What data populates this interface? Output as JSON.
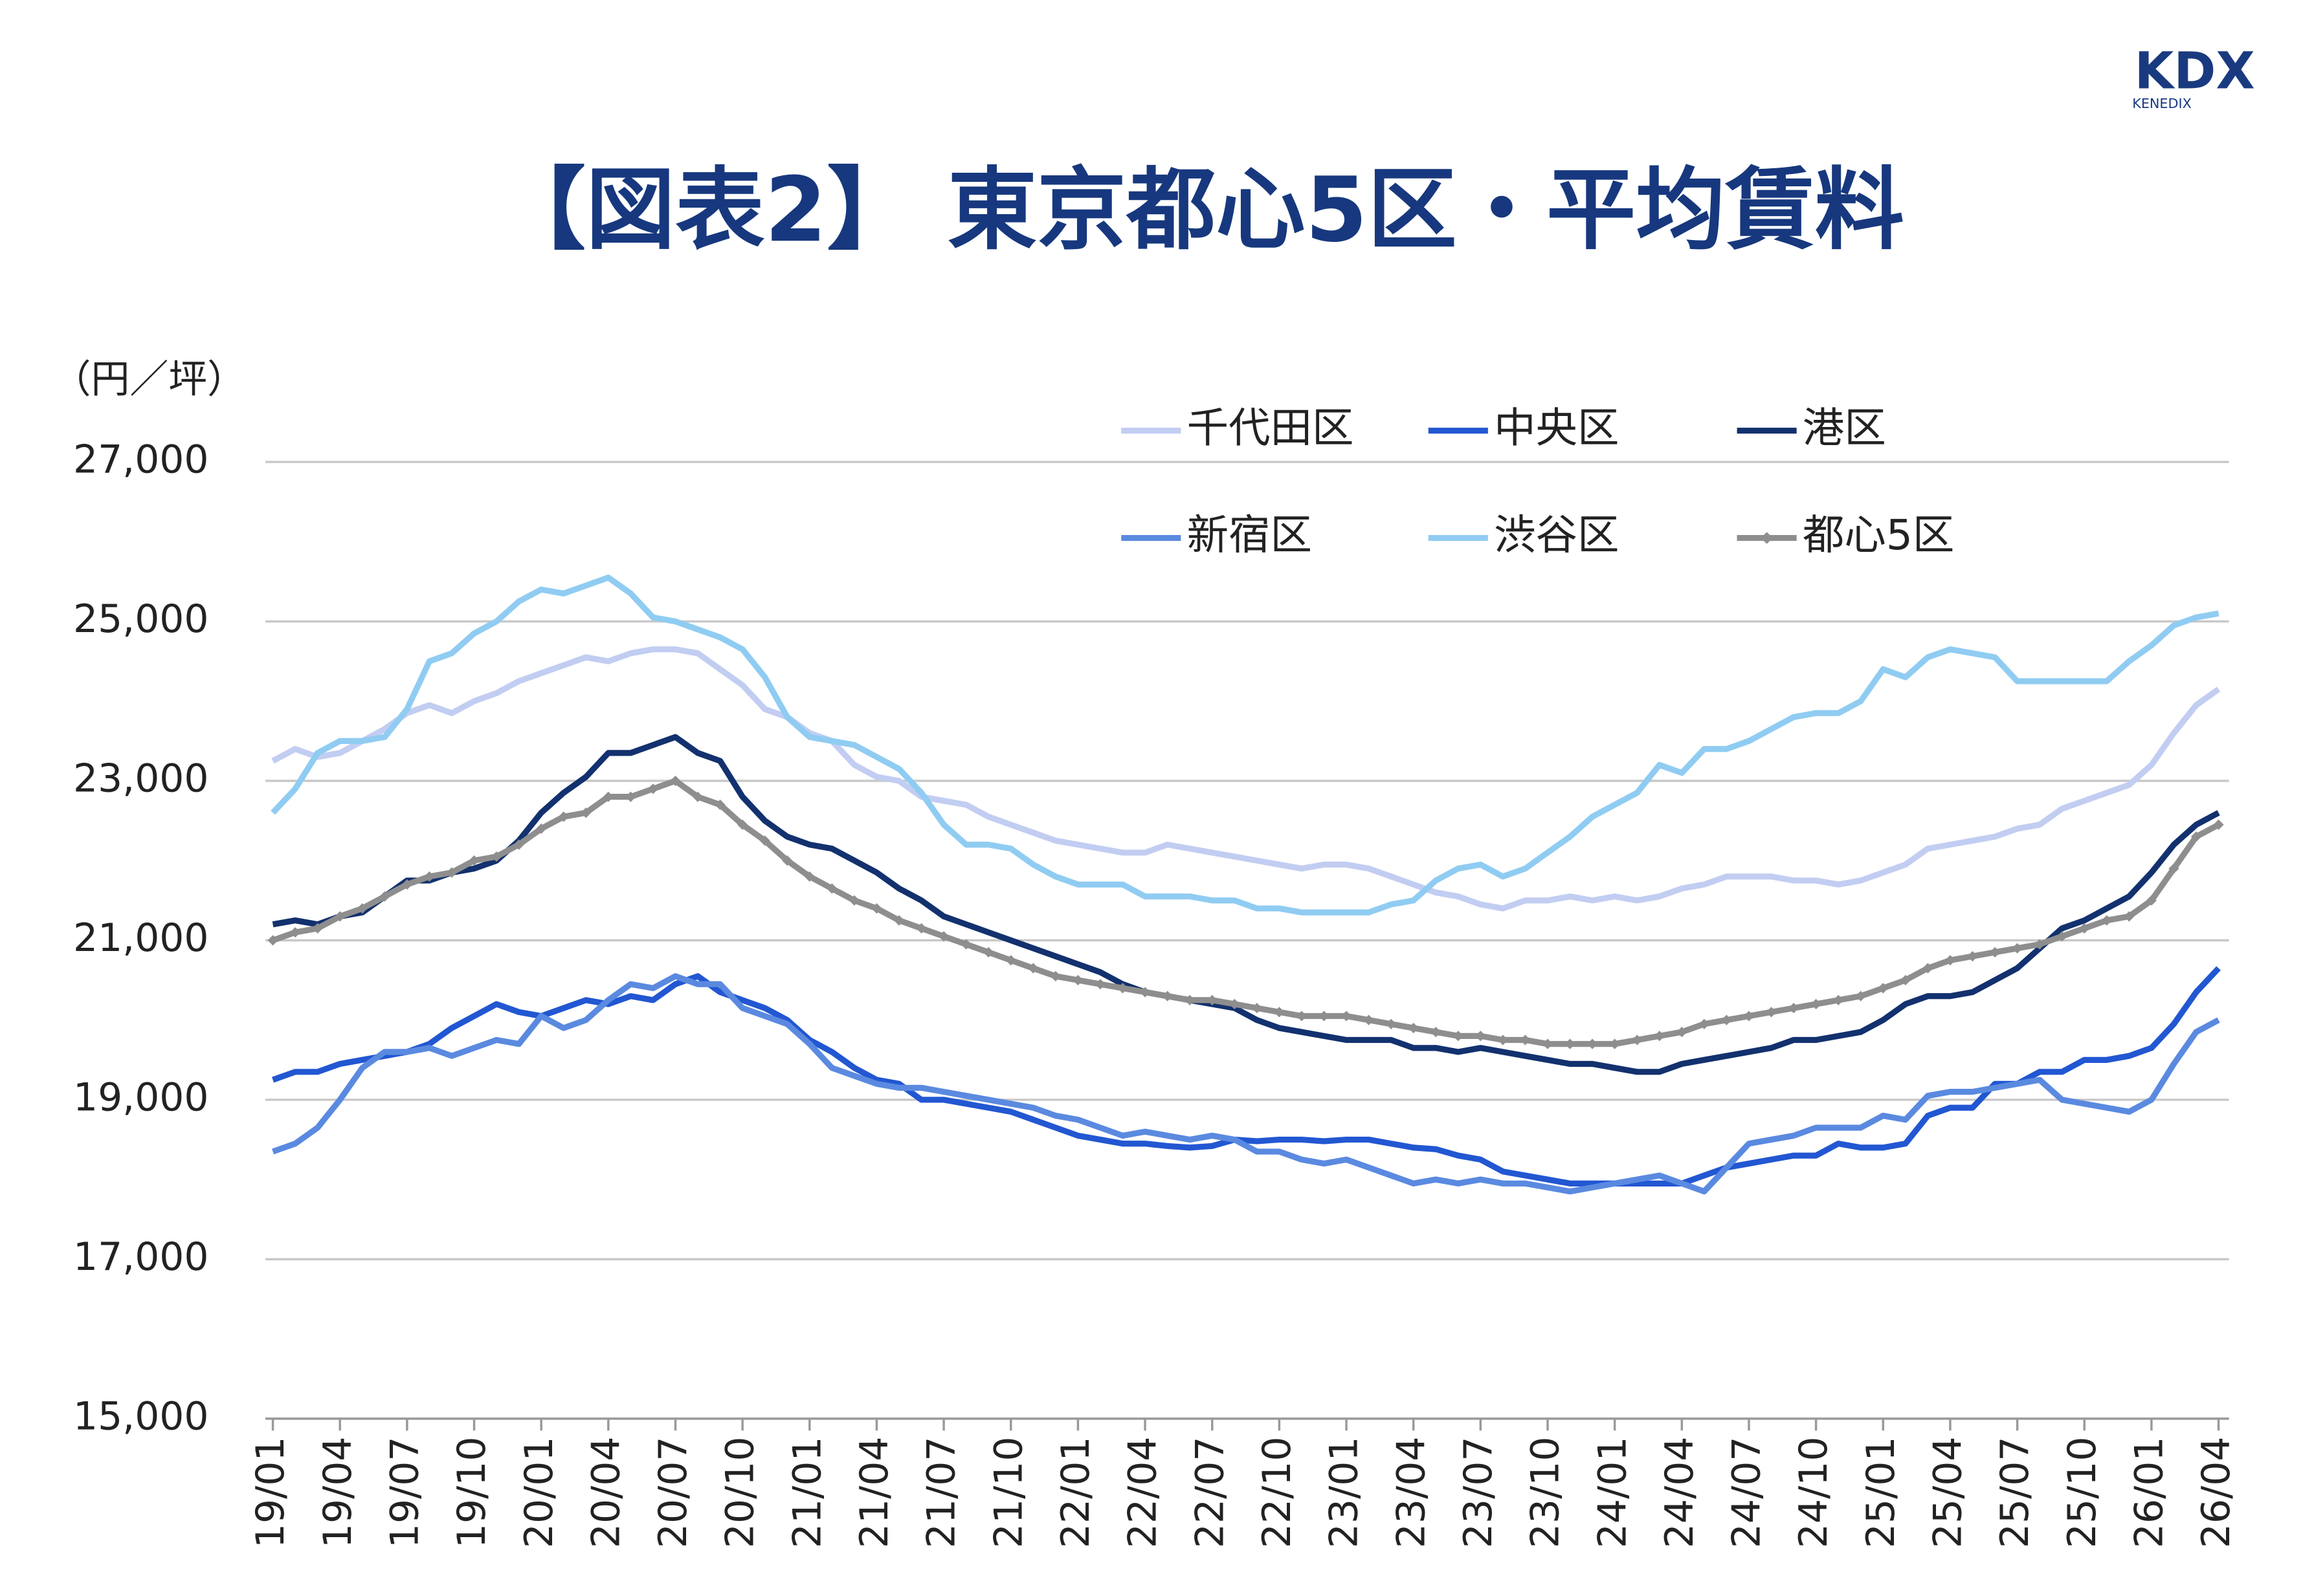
{
  "logo": {
    "brand": "KDX",
    "sub": "KENEDIX"
  },
  "chart_data": {
    "type": "line",
    "title": "【図表2】 東京都心5区・平均賃料",
    "y_axis_label": "（円／坪）",
    "categories": [
      "19/01",
      null,
      null,
      "19/04",
      null,
      null,
      "19/07",
      null,
      null,
      "19/10",
      null,
      null,
      "20/01",
      null,
      null,
      "20/04",
      null,
      null,
      "20/07",
      null,
      null,
      "20/10",
      null,
      null,
      "21/01",
      null,
      null,
      "21/04",
      null,
      null,
      "21/07",
      null,
      null,
      "21/10",
      null,
      null,
      "22/01",
      null,
      null,
      "22/04",
      null,
      null,
      "22/07",
      null,
      null,
      "22/10",
      null,
      null,
      "23/01",
      null,
      null,
      "23/04",
      null,
      null,
      "23/07",
      null,
      null,
      "23/10",
      null,
      null,
      "24/01",
      null,
      null,
      "24/04",
      null,
      null,
      "24/07",
      null,
      null,
      "24/10",
      null,
      null,
      "25/01",
      null,
      null,
      "25/04",
      null,
      null,
      "25/07",
      null,
      null,
      "25/10",
      null,
      null,
      "26/01",
      null,
      null,
      "26/04"
    ],
    "ylim": [
      15000,
      27000
    ],
    "yticks": [
      {
        "value": 15000,
        "label": "15,000"
      },
      {
        "value": 17000,
        "label": "17,000"
      },
      {
        "value": 19000,
        "label": "19,000"
      },
      {
        "value": 21000,
        "label": "21,000"
      },
      {
        "value": 23000,
        "label": "23,000"
      },
      {
        "value": 25000,
        "label": "25,000"
      },
      {
        "value": 27000,
        "label": "27,000"
      }
    ],
    "grid": true,
    "series": [
      {
        "name": "千代田区",
        "color": "#c2cdf2",
        "values": [
          23250,
          23400,
          23300,
          23350,
          23500,
          23650,
          23850,
          23950,
          23850,
          24000,
          24100,
          24250,
          24350,
          24450,
          24550,
          24500,
          24600,
          24650,
          24650,
          24600,
          24400,
          24200,
          23900,
          23800,
          23600,
          23500,
          23200,
          23050,
          23000,
          22800,
          22750,
          22700,
          22550,
          22450,
          22350,
          22250,
          22200,
          22150,
          22100,
          22100,
          22200,
          22150,
          22100,
          22050,
          22000,
          21950,
          21900,
          21950,
          21950,
          21900,
          21800,
          21700,
          21600,
          21550,
          21450,
          21400,
          21500,
          21500,
          21550,
          21500,
          21550,
          21500,
          21550,
          21650,
          21700,
          21800,
          21800,
          21800,
          21750,
          21750,
          21700,
          21750,
          21850,
          21950,
          22150,
          22200,
          22250,
          22300,
          22400,
          22450,
          22650,
          22750,
          22850,
          22950,
          23200,
          23600,
          23950,
          24150
        ]
      },
      {
        "name": "中央区",
        "color": "#2257d2",
        "values": [
          19250,
          19350,
          19350,
          19450,
          19500,
          19550,
          19600,
          19700,
          19900,
          20050,
          20200,
          20100,
          20050,
          20150,
          20250,
          20200,
          20300,
          20250,
          20450,
          20550,
          20350,
          20250,
          20150,
          20000,
          19750,
          19600,
          19400,
          19250,
          19200,
          19000,
          19000,
          18950,
          18900,
          18850,
          18750,
          18650,
          18550,
          18500,
          18450,
          18450,
          18420,
          18400,
          18420,
          18500,
          18480,
          18500,
          18500,
          18480,
          18500,
          18500,
          18450,
          18400,
          18380,
          18300,
          18250,
          18100,
          18050,
          18000,
          17950,
          17950,
          17950,
          17950,
          17950,
          17950,
          18050,
          18150,
          18200,
          18250,
          18300,
          18300,
          18450,
          18400,
          18400,
          18450,
          18800,
          18900,
          18900,
          19200,
          19200,
          19350,
          19350,
          19500,
          19500,
          19550,
          19650,
          19950,
          20350,
          20650
        ]
      },
      {
        "name": "港区",
        "color": "#12316e",
        "values": [
          21200,
          21250,
          21200,
          21300,
          21350,
          21550,
          21750,
          21750,
          21850,
          21900,
          22000,
          22250,
          22600,
          22850,
          23050,
          23350,
          23350,
          23450,
          23550,
          23350,
          23250,
          22800,
          22500,
          22300,
          22200,
          22150,
          22000,
          21850,
          21650,
          21500,
          21300,
          21200,
          21100,
          21000,
          20900,
          20800,
          20700,
          20600,
          20450,
          20350,
          20300,
          20250,
          20200,
          20150,
          20000,
          19900,
          19850,
          19800,
          19750,
          19750,
          19750,
          19650,
          19650,
          19600,
          19650,
          19600,
          19550,
          19500,
          19450,
          19450,
          19400,
          19350,
          19350,
          19450,
          19500,
          19550,
          19600,
          19650,
          19750,
          19750,
          19800,
          19850,
          20000,
          20200,
          20300,
          20300,
          20350,
          20500,
          20650,
          20900,
          21150,
          21250,
          21400,
          21550,
          21850,
          22200,
          22450,
          22600
        ]
      },
      {
        "name": "新宿区",
        "color": "#5a8ae0",
        "values": [
          18350,
          18450,
          18650,
          19000,
          19400,
          19600,
          19600,
          19650,
          19550,
          19650,
          19750,
          19700,
          20050,
          19900,
          20000,
          20250,
          20450,
          20400,
          20550,
          20450,
          20450,
          20150,
          20050,
          19950,
          19700,
          19400,
          19300,
          19200,
          19150,
          19150,
          19100,
          19050,
          19000,
          18950,
          18900,
          18800,
          18750,
          18650,
          18550,
          18600,
          18550,
          18500,
          18550,
          18500,
          18350,
          18350,
          18250,
          18200,
          18250,
          18150,
          18050,
          17950,
          18000,
          17950,
          18000,
          17950,
          17950,
          17900,
          17850,
          17900,
          17950,
          18000,
          18050,
          17950,
          17850,
          18150,
          18450,
          18500,
          18550,
          18650,
          18650,
          18650,
          18800,
          18750,
          19050,
          19100,
          19100,
          19150,
          19200,
          19250,
          19000,
          18950,
          18900,
          18850,
          19000,
          19450,
          19850,
          20000
        ]
      },
      {
        "name": "渋谷区",
        "color": "#90ccf2",
        "values": [
          22600,
          22900,
          23350,
          23500,
          23500,
          23550,
          23900,
          24500,
          24600,
          24850,
          25000,
          25250,
          25400,
          25350,
          25450,
          25550,
          25350,
          25050,
          25000,
          24900,
          24800,
          24650,
          24300,
          23800,
          23550,
          23500,
          23450,
          23300,
          23150,
          22850,
          22450,
          22200,
          22200,
          22150,
          21950,
          21800,
          21700,
          21700,
          21700,
          21550,
          21550,
          21550,
          21500,
          21500,
          21400,
          21400,
          21350,
          21350,
          21350,
          21350,
          21450,
          21500,
          21750,
          21900,
          21950,
          21800,
          21900,
          22100,
          22300,
          22550,
          22700,
          22850,
          23200,
          23100,
          23400,
          23400,
          23500,
          23650,
          23800,
          23850,
          23850,
          24000,
          24400,
          24300,
          24550,
          24650,
          24600,
          24550,
          24250,
          24250,
          24250,
          24250,
          24250,
          24500,
          24700,
          24950,
          25050,
          25100
        ]
      },
      {
        "name": "都心5区",
        "color": "#8e8e8e",
        "marker": "diamond",
        "values": [
          21000,
          21100,
          21150,
          21300,
          21400,
          21550,
          21700,
          21800,
          21850,
          22000,
          22050,
          22200,
          22400,
          22550,
          22600,
          22800,
          22800,
          22900,
          23000,
          22800,
          22700,
          22450,
          22250,
          22000,
          21800,
          21650,
          21500,
          21400,
          21250,
          21150,
          21050,
          20950,
          20850,
          20750,
          20650,
          20550,
          20500,
          20450,
          20400,
          20350,
          20300,
          20250,
          20250,
          20200,
          20150,
          20100,
          20050,
          20050,
          20050,
          20000,
          19950,
          19900,
          19850,
          19800,
          19800,
          19750,
          19750,
          19700,
          19700,
          19700,
          19700,
          19750,
          19800,
          19850,
          19950,
          20000,
          20050,
          20100,
          20150,
          20200,
          20250,
          20300,
          20400,
          20500,
          20650,
          20750,
          20800,
          20850,
          20900,
          20950,
          21050,
          21150,
          21250,
          21300,
          21500,
          21900,
          22300,
          22450
        ]
      }
    ]
  }
}
